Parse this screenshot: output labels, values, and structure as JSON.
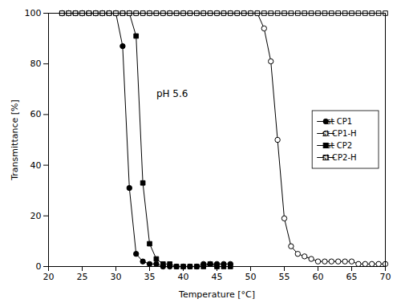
{
  "chart_data": {
    "type": "line",
    "xlabel": "Temperature [°C]",
    "ylabel": "Transmittance [%]",
    "annotations": [
      {
        "text": "pH 5.6",
        "x": 36,
        "y": 67
      }
    ],
    "xlim": [
      20,
      70
    ],
    "ylim": [
      0,
      100
    ],
    "xticks": [
      20,
      25,
      30,
      35,
      40,
      45,
      50,
      55,
      60,
      65,
      70
    ],
    "yticks": [
      0,
      20,
      40,
      60,
      80,
      100
    ],
    "grid": false,
    "legend": "center right",
    "series": [
      {
        "name": "st CP1",
        "color": "black",
        "marker": "circle",
        "x": [
          22,
          23,
          24,
          25,
          26,
          27,
          28,
          29,
          30,
          31,
          32,
          33,
          34,
          35,
          36,
          37,
          38,
          39,
          40,
          41,
          42,
          43,
          44,
          45,
          46,
          47
        ],
        "values": [
          100,
          100,
          100,
          100,
          100,
          100,
          100,
          100,
          100,
          87,
          31,
          5,
          2,
          1,
          1,
          0,
          0,
          0,
          0,
          0,
          0,
          1,
          1,
          1,
          1,
          1
        ]
      },
      {
        "name": "st CP1-H",
        "color": "black",
        "marker": "circle-open",
        "x": [
          22,
          23,
          24,
          25,
          26,
          27,
          28,
          29,
          30,
          31,
          32,
          33,
          34,
          35,
          36,
          37,
          38,
          39,
          40,
          41,
          42,
          43,
          44,
          45,
          46,
          47,
          48,
          49,
          50,
          51,
          52,
          53,
          54,
          55,
          56,
          57,
          58,
          59,
          60,
          61,
          62,
          63,
          64,
          65,
          66,
          67,
          68,
          69,
          70
        ],
        "values": [
          100,
          100,
          100,
          100,
          100,
          100,
          100,
          100,
          100,
          100,
          100,
          100,
          100,
          100,
          100,
          100,
          100,
          100,
          100,
          100,
          100,
          100,
          100,
          100,
          100,
          100,
          100,
          100,
          100,
          100,
          94,
          81,
          50,
          19,
          8,
          5,
          4,
          3,
          2,
          2,
          2,
          2,
          2,
          2,
          1,
          1,
          1,
          1,
          1
        ]
      },
      {
        "name": "st CP2",
        "color": "black",
        "marker": "square",
        "x": [
          22,
          23,
          24,
          25,
          26,
          27,
          28,
          29,
          30,
          31,
          32,
          33,
          34,
          35,
          36,
          37,
          38,
          39,
          40,
          41,
          42,
          43,
          44,
          45,
          46,
          47
        ],
        "values": [
          100,
          100,
          100,
          100,
          100,
          100,
          100,
          100,
          100,
          100,
          100,
          91,
          33,
          9,
          3,
          1,
          1,
          0,
          0,
          0,
          0,
          0,
          1,
          0,
          0,
          0
        ]
      },
      {
        "name": "st CP2-H",
        "color": "black",
        "marker": "square-open",
        "x": [
          22,
          23,
          24,
          25,
          26,
          27,
          28,
          29,
          30,
          31,
          32,
          33,
          34,
          35,
          36,
          37,
          38,
          39,
          40,
          41,
          42,
          43,
          44,
          45,
          46,
          47,
          48,
          49,
          50,
          51,
          52,
          53,
          54,
          55,
          56,
          57,
          58,
          59,
          60,
          61,
          62,
          63,
          64,
          65,
          66,
          67,
          68,
          69,
          70
        ],
        "values": [
          100,
          100,
          100,
          100,
          100,
          100,
          100,
          100,
          100,
          100,
          100,
          100,
          100,
          100,
          100,
          100,
          100,
          100,
          100,
          100,
          100,
          100,
          100,
          100,
          100,
          100,
          100,
          100,
          100,
          100,
          100,
          100,
          100,
          100,
          100,
          100,
          100,
          100,
          100,
          100,
          100,
          100,
          100,
          100,
          100,
          100,
          100,
          100,
          100
        ]
      }
    ]
  }
}
